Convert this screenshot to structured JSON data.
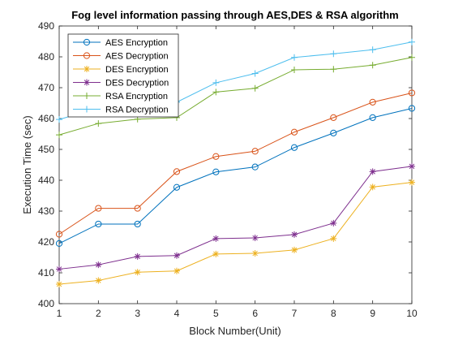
{
  "chart_data": {
    "type": "line",
    "title": "Fog level  information passing through AES,DES & RSA algorithm",
    "xlabel": "Block Number(Unit)",
    "ylabel": "Execution Time (sec)",
    "xlim": [
      1,
      10
    ],
    "ylim": [
      400,
      490
    ],
    "xticks": [
      1,
      2,
      3,
      4,
      5,
      6,
      7,
      8,
      9,
      10
    ],
    "yticks": [
      400,
      410,
      420,
      430,
      440,
      450,
      460,
      470,
      480,
      490
    ],
    "grid": false,
    "legend_position": "top-left",
    "x": [
      1,
      2,
      3,
      4,
      5,
      6,
      7,
      8,
      9,
      10
    ],
    "series": [
      {
        "name": "AES Encryption",
        "color": "#0072BD",
        "marker": "circle",
        "values": [
          419.5,
          425.8,
          425.8,
          437.7,
          442.7,
          444.3,
          450.6,
          455.3,
          460.3,
          463.3
        ]
      },
      {
        "name": "AES Decryption",
        "color": "#D95319",
        "marker": "circle",
        "values": [
          422.5,
          430.9,
          430.9,
          442.8,
          447.7,
          449.4,
          455.6,
          460.3,
          465.3,
          468.3
        ]
      },
      {
        "name": "DES Encryption",
        "color": "#EDB120",
        "marker": "asterisk",
        "values": [
          406.3,
          407.5,
          410.2,
          410.6,
          416.1,
          416.3,
          417.4,
          421.1,
          437.8,
          439.3
        ]
      },
      {
        "name": "DES Decryption",
        "color": "#7E2F8E",
        "marker": "asterisk",
        "values": [
          411.2,
          412.6,
          415.3,
          415.6,
          421.1,
          421.3,
          422.4,
          426.1,
          442.8,
          444.5
        ]
      },
      {
        "name": "RSA Encryption",
        "color": "#77AC30",
        "marker": "plus",
        "values": [
          454.7,
          458.4,
          459.8,
          460.3,
          468.6,
          469.8,
          475.8,
          476.0,
          477.3,
          479.8
        ]
      },
      {
        "name": "RSA Decryption",
        "color": "#4DBEEE",
        "marker": "plus",
        "values": [
          459.7,
          463.4,
          464.8,
          465.3,
          471.6,
          474.6,
          479.8,
          481.0,
          482.3,
          484.8
        ]
      }
    ]
  }
}
